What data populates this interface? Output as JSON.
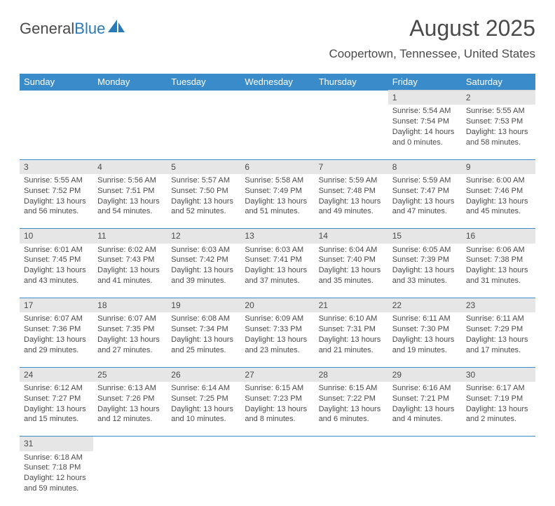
{
  "logo": {
    "text1": "General",
    "text2": "Blue"
  },
  "title": "August 2025",
  "location": "Coopertown, Tennessee, United States",
  "dayHeaders": [
    "Sunday",
    "Monday",
    "Tuesday",
    "Wednesday",
    "Thursday",
    "Friday",
    "Saturday"
  ],
  "colors": {
    "headerBg": "#3a8bc9",
    "headerText": "#ffffff",
    "dayRowBg": "#e6e6e6",
    "border": "#3a8bc9",
    "text": "#4a4a4a",
    "logoBlue": "#2a7ab8"
  },
  "weeks": [
    [
      null,
      null,
      null,
      null,
      null,
      {
        "n": "1",
        "sr": "Sunrise: 5:54 AM",
        "ss": "Sunset: 7:54 PM",
        "dl1": "Daylight: 14 hours",
        "dl2": "and 0 minutes."
      },
      {
        "n": "2",
        "sr": "Sunrise: 5:55 AM",
        "ss": "Sunset: 7:53 PM",
        "dl1": "Daylight: 13 hours",
        "dl2": "and 58 minutes."
      }
    ],
    [
      {
        "n": "3",
        "sr": "Sunrise: 5:55 AM",
        "ss": "Sunset: 7:52 PM",
        "dl1": "Daylight: 13 hours",
        "dl2": "and 56 minutes."
      },
      {
        "n": "4",
        "sr": "Sunrise: 5:56 AM",
        "ss": "Sunset: 7:51 PM",
        "dl1": "Daylight: 13 hours",
        "dl2": "and 54 minutes."
      },
      {
        "n": "5",
        "sr": "Sunrise: 5:57 AM",
        "ss": "Sunset: 7:50 PM",
        "dl1": "Daylight: 13 hours",
        "dl2": "and 52 minutes."
      },
      {
        "n": "6",
        "sr": "Sunrise: 5:58 AM",
        "ss": "Sunset: 7:49 PM",
        "dl1": "Daylight: 13 hours",
        "dl2": "and 51 minutes."
      },
      {
        "n": "7",
        "sr": "Sunrise: 5:59 AM",
        "ss": "Sunset: 7:48 PM",
        "dl1": "Daylight: 13 hours",
        "dl2": "and 49 minutes."
      },
      {
        "n": "8",
        "sr": "Sunrise: 5:59 AM",
        "ss": "Sunset: 7:47 PM",
        "dl1": "Daylight: 13 hours",
        "dl2": "and 47 minutes."
      },
      {
        "n": "9",
        "sr": "Sunrise: 6:00 AM",
        "ss": "Sunset: 7:46 PM",
        "dl1": "Daylight: 13 hours",
        "dl2": "and 45 minutes."
      }
    ],
    [
      {
        "n": "10",
        "sr": "Sunrise: 6:01 AM",
        "ss": "Sunset: 7:45 PM",
        "dl1": "Daylight: 13 hours",
        "dl2": "and 43 minutes."
      },
      {
        "n": "11",
        "sr": "Sunrise: 6:02 AM",
        "ss": "Sunset: 7:43 PM",
        "dl1": "Daylight: 13 hours",
        "dl2": "and 41 minutes."
      },
      {
        "n": "12",
        "sr": "Sunrise: 6:03 AM",
        "ss": "Sunset: 7:42 PM",
        "dl1": "Daylight: 13 hours",
        "dl2": "and 39 minutes."
      },
      {
        "n": "13",
        "sr": "Sunrise: 6:03 AM",
        "ss": "Sunset: 7:41 PM",
        "dl1": "Daylight: 13 hours",
        "dl2": "and 37 minutes."
      },
      {
        "n": "14",
        "sr": "Sunrise: 6:04 AM",
        "ss": "Sunset: 7:40 PM",
        "dl1": "Daylight: 13 hours",
        "dl2": "and 35 minutes."
      },
      {
        "n": "15",
        "sr": "Sunrise: 6:05 AM",
        "ss": "Sunset: 7:39 PM",
        "dl1": "Daylight: 13 hours",
        "dl2": "and 33 minutes."
      },
      {
        "n": "16",
        "sr": "Sunrise: 6:06 AM",
        "ss": "Sunset: 7:38 PM",
        "dl1": "Daylight: 13 hours",
        "dl2": "and 31 minutes."
      }
    ],
    [
      {
        "n": "17",
        "sr": "Sunrise: 6:07 AM",
        "ss": "Sunset: 7:36 PM",
        "dl1": "Daylight: 13 hours",
        "dl2": "and 29 minutes."
      },
      {
        "n": "18",
        "sr": "Sunrise: 6:07 AM",
        "ss": "Sunset: 7:35 PM",
        "dl1": "Daylight: 13 hours",
        "dl2": "and 27 minutes."
      },
      {
        "n": "19",
        "sr": "Sunrise: 6:08 AM",
        "ss": "Sunset: 7:34 PM",
        "dl1": "Daylight: 13 hours",
        "dl2": "and 25 minutes."
      },
      {
        "n": "20",
        "sr": "Sunrise: 6:09 AM",
        "ss": "Sunset: 7:33 PM",
        "dl1": "Daylight: 13 hours",
        "dl2": "and 23 minutes."
      },
      {
        "n": "21",
        "sr": "Sunrise: 6:10 AM",
        "ss": "Sunset: 7:31 PM",
        "dl1": "Daylight: 13 hours",
        "dl2": "and 21 minutes."
      },
      {
        "n": "22",
        "sr": "Sunrise: 6:11 AM",
        "ss": "Sunset: 7:30 PM",
        "dl1": "Daylight: 13 hours",
        "dl2": "and 19 minutes."
      },
      {
        "n": "23",
        "sr": "Sunrise: 6:11 AM",
        "ss": "Sunset: 7:29 PM",
        "dl1": "Daylight: 13 hours",
        "dl2": "and 17 minutes."
      }
    ],
    [
      {
        "n": "24",
        "sr": "Sunrise: 6:12 AM",
        "ss": "Sunset: 7:27 PM",
        "dl1": "Daylight: 13 hours",
        "dl2": "and 15 minutes."
      },
      {
        "n": "25",
        "sr": "Sunrise: 6:13 AM",
        "ss": "Sunset: 7:26 PM",
        "dl1": "Daylight: 13 hours",
        "dl2": "and 12 minutes."
      },
      {
        "n": "26",
        "sr": "Sunrise: 6:14 AM",
        "ss": "Sunset: 7:25 PM",
        "dl1": "Daylight: 13 hours",
        "dl2": "and 10 minutes."
      },
      {
        "n": "27",
        "sr": "Sunrise: 6:15 AM",
        "ss": "Sunset: 7:23 PM",
        "dl1": "Daylight: 13 hours",
        "dl2": "and 8 minutes."
      },
      {
        "n": "28",
        "sr": "Sunrise: 6:15 AM",
        "ss": "Sunset: 7:22 PM",
        "dl1": "Daylight: 13 hours",
        "dl2": "and 6 minutes."
      },
      {
        "n": "29",
        "sr": "Sunrise: 6:16 AM",
        "ss": "Sunset: 7:21 PM",
        "dl1": "Daylight: 13 hours",
        "dl2": "and 4 minutes."
      },
      {
        "n": "30",
        "sr": "Sunrise: 6:17 AM",
        "ss": "Sunset: 7:19 PM",
        "dl1": "Daylight: 13 hours",
        "dl2": "and 2 minutes."
      }
    ],
    [
      {
        "n": "31",
        "sr": "Sunrise: 6:18 AM",
        "ss": "Sunset: 7:18 PM",
        "dl1": "Daylight: 12 hours",
        "dl2": "and 59 minutes."
      },
      null,
      null,
      null,
      null,
      null,
      null
    ]
  ]
}
